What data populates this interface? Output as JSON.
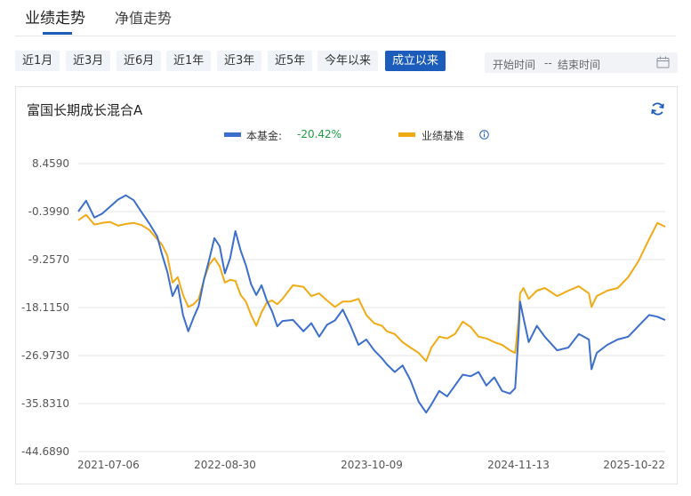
{
  "tabs": [
    {
      "label": "业绩走势",
      "active": true
    },
    {
      "label": "净值走势",
      "active": false
    }
  ],
  "ranges": [
    {
      "label": "近1月",
      "active": false
    },
    {
      "label": "近3月",
      "active": false
    },
    {
      "label": "近6月",
      "active": false
    },
    {
      "label": "近1年",
      "active": false
    },
    {
      "label": "近3年",
      "active": false
    },
    {
      "label": "近5年",
      "active": false
    },
    {
      "label": "今年以来",
      "active": false
    },
    {
      "label": "成立以来",
      "active": true
    }
  ],
  "date_range": {
    "start_placeholder": "开始时间",
    "separator": "--",
    "end_placeholder": "结束时间"
  },
  "fund_name": "富国长期成长混合A",
  "legend": {
    "fund_label": "本基金:",
    "fund_value": "-20.42%",
    "bench_label": "业绩基准"
  },
  "colors": {
    "fund": "#3c6fcb",
    "benchmark": "#f0aa16",
    "accent": "#1c5dbc",
    "positive_text": "#1a9d3f"
  },
  "icons": [
    "calendar-icon",
    "refresh-icon",
    "info-icon"
  ],
  "chart_data": {
    "type": "line",
    "ylim": [
      -44.689,
      8.459
    ],
    "y_ticks": [
      "8.4590",
      "-0.3990",
      "-9.2570",
      "-18.1150",
      "-26.9730",
      "-35.8310",
      "-44.6890"
    ],
    "x_ticks": [
      "2021-07-06",
      "2022-08-30",
      "2023-10-09",
      "2024-11-13",
      "2025-10-22"
    ],
    "xlim": [
      "2021-07-06",
      "2025-10-22"
    ],
    "grid": true,
    "series": [
      {
        "name": "本基金",
        "points": [
          [
            "2021-07-06",
            -0.4
          ],
          [
            "2021-07-27",
            1.6
          ],
          [
            "2021-08-18",
            -1.5
          ],
          [
            "2021-09-08",
            -0.8
          ],
          [
            "2021-09-29",
            0.5
          ],
          [
            "2021-10-20",
            1.8
          ],
          [
            "2021-11-10",
            2.6
          ],
          [
            "2021-12-01",
            1.7
          ],
          [
            "2021-12-22",
            -0.5
          ],
          [
            "2022-01-12",
            -2.6
          ],
          [
            "2022-02-02",
            -5.0
          ],
          [
            "2022-02-15",
            -8.3
          ],
          [
            "2022-03-01",
            -11.5
          ],
          [
            "2022-03-15",
            -16.0
          ],
          [
            "2022-03-29",
            -14.0
          ],
          [
            "2022-04-12",
            -19.5
          ],
          [
            "2022-04-26",
            -22.5
          ],
          [
            "2022-05-10",
            -20.0
          ],
          [
            "2022-05-24",
            -17.8
          ],
          [
            "2022-06-07",
            -13.0
          ],
          [
            "2022-06-21",
            -9.3
          ],
          [
            "2022-07-05",
            -5.3
          ],
          [
            "2022-07-19",
            -6.8
          ],
          [
            "2022-08-02",
            -11.8
          ],
          [
            "2022-08-16",
            -9.0
          ],
          [
            "2022-08-30",
            -4.0
          ],
          [
            "2022-09-13",
            -7.6
          ],
          [
            "2022-09-27",
            -10.3
          ],
          [
            "2022-10-11",
            -13.8
          ],
          [
            "2022-10-25",
            -15.8
          ],
          [
            "2022-11-08",
            -14.0
          ],
          [
            "2022-11-22",
            -16.8
          ],
          [
            "2022-12-06",
            -18.8
          ],
          [
            "2022-12-20",
            -21.6
          ],
          [
            "2023-01-03",
            -20.6
          ],
          [
            "2023-01-31",
            -20.4
          ],
          [
            "2023-02-28",
            -22.5
          ],
          [
            "2023-03-21",
            -21.0
          ],
          [
            "2023-04-11",
            -23.5
          ],
          [
            "2023-05-02",
            -21.3
          ],
          [
            "2023-05-23",
            -20.5
          ],
          [
            "2023-06-13",
            -18.5
          ],
          [
            "2023-07-04",
            -21.5
          ],
          [
            "2023-07-25",
            -25.0
          ],
          [
            "2023-08-15",
            -24.0
          ],
          [
            "2023-09-05",
            -26.0
          ],
          [
            "2023-09-26",
            -27.5
          ],
          [
            "2023-10-09",
            -28.6
          ],
          [
            "2023-10-30",
            -30.0
          ],
          [
            "2023-11-20",
            -28.8
          ],
          [
            "2023-12-11",
            -31.5
          ],
          [
            "2024-01-02",
            -35.5
          ],
          [
            "2024-01-22",
            -37.5
          ],
          [
            "2024-02-05",
            -36.0
          ],
          [
            "2024-02-26",
            -33.5
          ],
          [
            "2024-03-18",
            -34.5
          ],
          [
            "2024-04-08",
            -32.5
          ],
          [
            "2024-04-29",
            -30.5
          ],
          [
            "2024-05-20",
            -30.8
          ],
          [
            "2024-06-10",
            -30.0
          ],
          [
            "2024-07-01",
            -32.5
          ],
          [
            "2024-07-22",
            -31.0
          ],
          [
            "2024-08-12",
            -33.5
          ],
          [
            "2024-09-02",
            -34.0
          ],
          [
            "2024-09-16",
            -33.0
          ],
          [
            "2024-09-25",
            -23.0
          ],
          [
            "2024-09-29",
            -17.0
          ],
          [
            "2024-10-08",
            -20.0
          ],
          [
            "2024-10-22",
            -24.5
          ],
          [
            "2024-11-13",
            -21.5
          ],
          [
            "2024-12-04",
            -23.5
          ],
          [
            "2025-01-06",
            -26.0
          ],
          [
            "2025-02-05",
            -25.5
          ],
          [
            "2025-03-05",
            -23.0
          ],
          [
            "2025-04-01",
            -24.0
          ],
          [
            "2025-04-08",
            -29.5
          ],
          [
            "2025-04-22",
            -26.5
          ],
          [
            "2025-05-20",
            -25.0
          ],
          [
            "2025-06-17",
            -24.0
          ],
          [
            "2025-07-15",
            -23.5
          ],
          [
            "2025-08-12",
            -21.5
          ],
          [
            "2025-09-09",
            -19.5
          ],
          [
            "2025-10-01",
            -19.8
          ],
          [
            "2025-10-22",
            -20.42
          ]
        ]
      },
      {
        "name": "业绩基准",
        "points": [
          [
            "2021-07-06",
            -2.0
          ],
          [
            "2021-07-27",
            -1.0
          ],
          [
            "2021-08-18",
            -2.8
          ],
          [
            "2021-09-08",
            -2.5
          ],
          [
            "2021-09-29",
            -2.3
          ],
          [
            "2021-10-20",
            -3.0
          ],
          [
            "2021-11-10",
            -2.7
          ],
          [
            "2021-12-01",
            -2.5
          ],
          [
            "2021-12-22",
            -2.9
          ],
          [
            "2022-01-12",
            -3.8
          ],
          [
            "2022-02-02",
            -5.5
          ],
          [
            "2022-02-15",
            -6.5
          ],
          [
            "2022-03-01",
            -8.5
          ],
          [
            "2022-03-15",
            -13.5
          ],
          [
            "2022-03-29",
            -12.5
          ],
          [
            "2022-04-12",
            -15.8
          ],
          [
            "2022-04-26",
            -18.0
          ],
          [
            "2022-05-10",
            -17.5
          ],
          [
            "2022-05-24",
            -16.5
          ],
          [
            "2022-06-07",
            -13.0
          ],
          [
            "2022-06-21",
            -10.2
          ],
          [
            "2022-07-05",
            -9.0
          ],
          [
            "2022-07-19",
            -10.5
          ],
          [
            "2022-08-02",
            -13.5
          ],
          [
            "2022-08-16",
            -13.0
          ],
          [
            "2022-08-30",
            -13.2
          ],
          [
            "2022-09-13",
            -15.8
          ],
          [
            "2022-09-27",
            -17.0
          ],
          [
            "2022-10-11",
            -19.5
          ],
          [
            "2022-10-25",
            -21.5
          ],
          [
            "2022-11-08",
            -19.0
          ],
          [
            "2022-11-22",
            -17.2
          ],
          [
            "2022-12-06",
            -16.8
          ],
          [
            "2022-12-20",
            -17.5
          ],
          [
            "2023-01-03",
            -16.5
          ],
          [
            "2023-01-31",
            -14.0
          ],
          [
            "2023-02-28",
            -14.3
          ],
          [
            "2023-03-21",
            -16.0
          ],
          [
            "2023-04-11",
            -15.5
          ],
          [
            "2023-05-02",
            -16.8
          ],
          [
            "2023-05-23",
            -18.0
          ],
          [
            "2023-06-13",
            -17.0
          ],
          [
            "2023-07-04",
            -17.0
          ],
          [
            "2023-07-25",
            -16.5
          ],
          [
            "2023-08-15",
            -19.5
          ],
          [
            "2023-09-05",
            -21.0
          ],
          [
            "2023-09-26",
            -21.5
          ],
          [
            "2023-10-09",
            -22.5
          ],
          [
            "2023-10-30",
            -23.0
          ],
          [
            "2023-11-20",
            -24.5
          ],
          [
            "2023-12-11",
            -25.5
          ],
          [
            "2024-01-02",
            -26.5
          ],
          [
            "2024-01-22",
            -28.0
          ],
          [
            "2024-02-05",
            -25.5
          ],
          [
            "2024-02-26",
            -23.5
          ],
          [
            "2024-03-18",
            -23.8
          ],
          [
            "2024-04-08",
            -23.0
          ],
          [
            "2024-04-29",
            -20.7
          ],
          [
            "2024-05-20",
            -21.7
          ],
          [
            "2024-06-10",
            -23.5
          ],
          [
            "2024-07-01",
            -23.8
          ],
          [
            "2024-07-22",
            -24.5
          ],
          [
            "2024-08-12",
            -25.0
          ],
          [
            "2024-09-02",
            -26.0
          ],
          [
            "2024-09-16",
            -26.5
          ],
          [
            "2024-09-25",
            -20.5
          ],
          [
            "2024-09-29",
            -15.5
          ],
          [
            "2024-10-08",
            -14.5
          ],
          [
            "2024-10-22",
            -16.5
          ],
          [
            "2024-11-13",
            -15.0
          ],
          [
            "2024-12-04",
            -14.5
          ],
          [
            "2025-01-06",
            -16.0
          ],
          [
            "2025-02-05",
            -15.0
          ],
          [
            "2025-03-05",
            -14.2
          ],
          [
            "2025-04-01",
            -15.5
          ],
          [
            "2025-04-08",
            -18.0
          ],
          [
            "2025-04-22",
            -16.0
          ],
          [
            "2025-05-20",
            -15.0
          ],
          [
            "2025-06-17",
            -14.5
          ],
          [
            "2025-07-15",
            -12.5
          ],
          [
            "2025-08-12",
            -9.5
          ],
          [
            "2025-09-09",
            -5.5
          ],
          [
            "2025-10-01",
            -2.5
          ],
          [
            "2025-10-22",
            -3.2
          ]
        ]
      }
    ]
  }
}
